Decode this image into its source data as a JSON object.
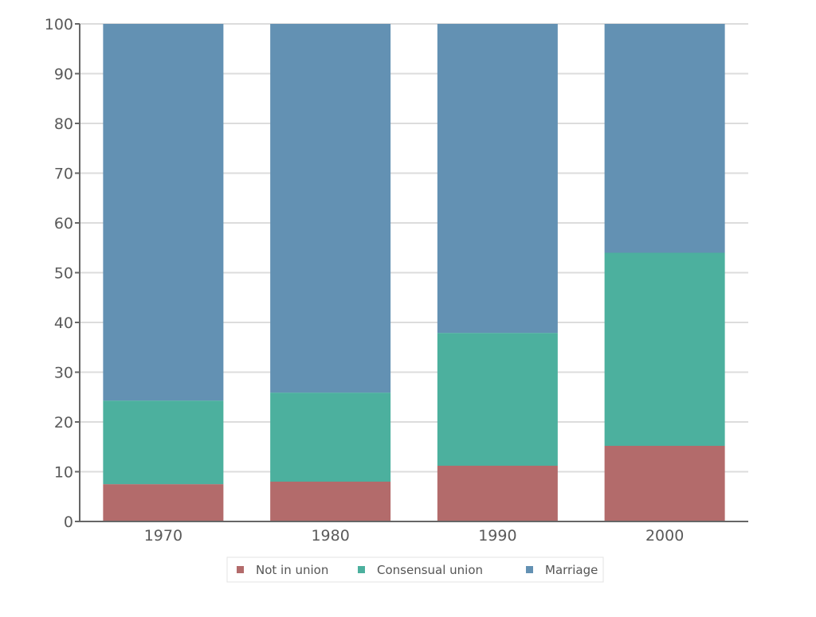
{
  "chart_data": {
    "type": "bar",
    "stacked": true,
    "categories": [
      "1970",
      "1980",
      "1990",
      "2000"
    ],
    "series": [
      {
        "name": "Not in union",
        "color": "#b36b6b",
        "values": [
          7.5,
          8.0,
          11.2,
          15.2
        ]
      },
      {
        "name": "Consensual union",
        "color": "#4cb09e",
        "values": [
          16.8,
          17.9,
          26.7,
          38.8
        ]
      },
      {
        "name": "Marriage",
        "color": "#6391b3",
        "values": [
          75.7,
          74.1,
          62.1,
          46.0
        ]
      }
    ],
    "title": "",
    "xlabel": "",
    "ylabel": "",
    "ylim": [
      0,
      100
    ],
    "yticks": [
      "0",
      "10",
      "20",
      "30",
      "40",
      "50",
      "60",
      "70",
      "80",
      "90",
      "100"
    ],
    "grid": true,
    "legend_position": "bottom"
  }
}
